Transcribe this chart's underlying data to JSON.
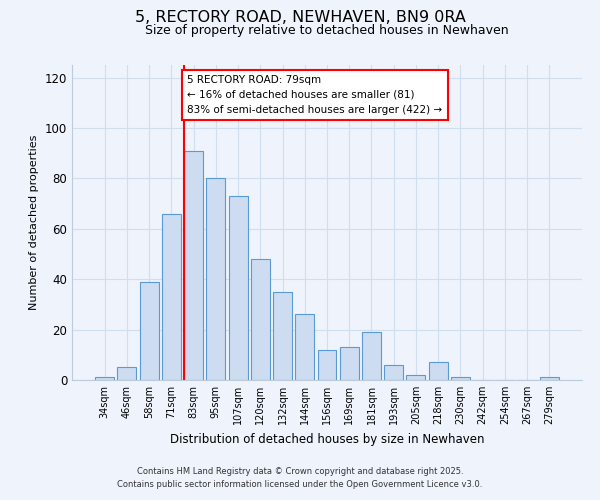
{
  "title": "5, RECTORY ROAD, NEWHAVEN, BN9 0RA",
  "subtitle": "Size of property relative to detached houses in Newhaven",
  "xlabel": "Distribution of detached houses by size in Newhaven",
  "ylabel": "Number of detached properties",
  "categories": [
    "34sqm",
    "46sqm",
    "58sqm",
    "71sqm",
    "83sqm",
    "95sqm",
    "107sqm",
    "120sqm",
    "132sqm",
    "144sqm",
    "156sqm",
    "169sqm",
    "181sqm",
    "193sqm",
    "205sqm",
    "218sqm",
    "230sqm",
    "242sqm",
    "254sqm",
    "267sqm",
    "279sqm"
  ],
  "values": [
    1,
    5,
    39,
    66,
    91,
    80,
    73,
    48,
    35,
    26,
    12,
    13,
    19,
    6,
    2,
    7,
    1,
    0,
    0,
    0,
    1
  ],
  "bar_color": "#cddcf0",
  "bar_edge_color": "#5b9bd5",
  "grid_color": "#d0dff0",
  "vline_bar_index": 4,
  "vline_color": "red",
  "annotation_text": "5 RECTORY ROAD: 79sqm\n← 16% of detached houses are smaller (81)\n83% of semi-detached houses are larger (422) →",
  "annotation_box_color": "white",
  "annotation_box_edge": "red",
  "ylim": [
    0,
    125
  ],
  "yticks": [
    0,
    20,
    40,
    60,
    80,
    100,
    120
  ],
  "footer1": "Contains HM Land Registry data © Crown copyright and database right 2025.",
  "footer2": "Contains public sector information licensed under the Open Government Licence v3.0.",
  "bg_color": "#eef3fc",
  "title_fontsize": 11.5,
  "subtitle_fontsize": 9
}
